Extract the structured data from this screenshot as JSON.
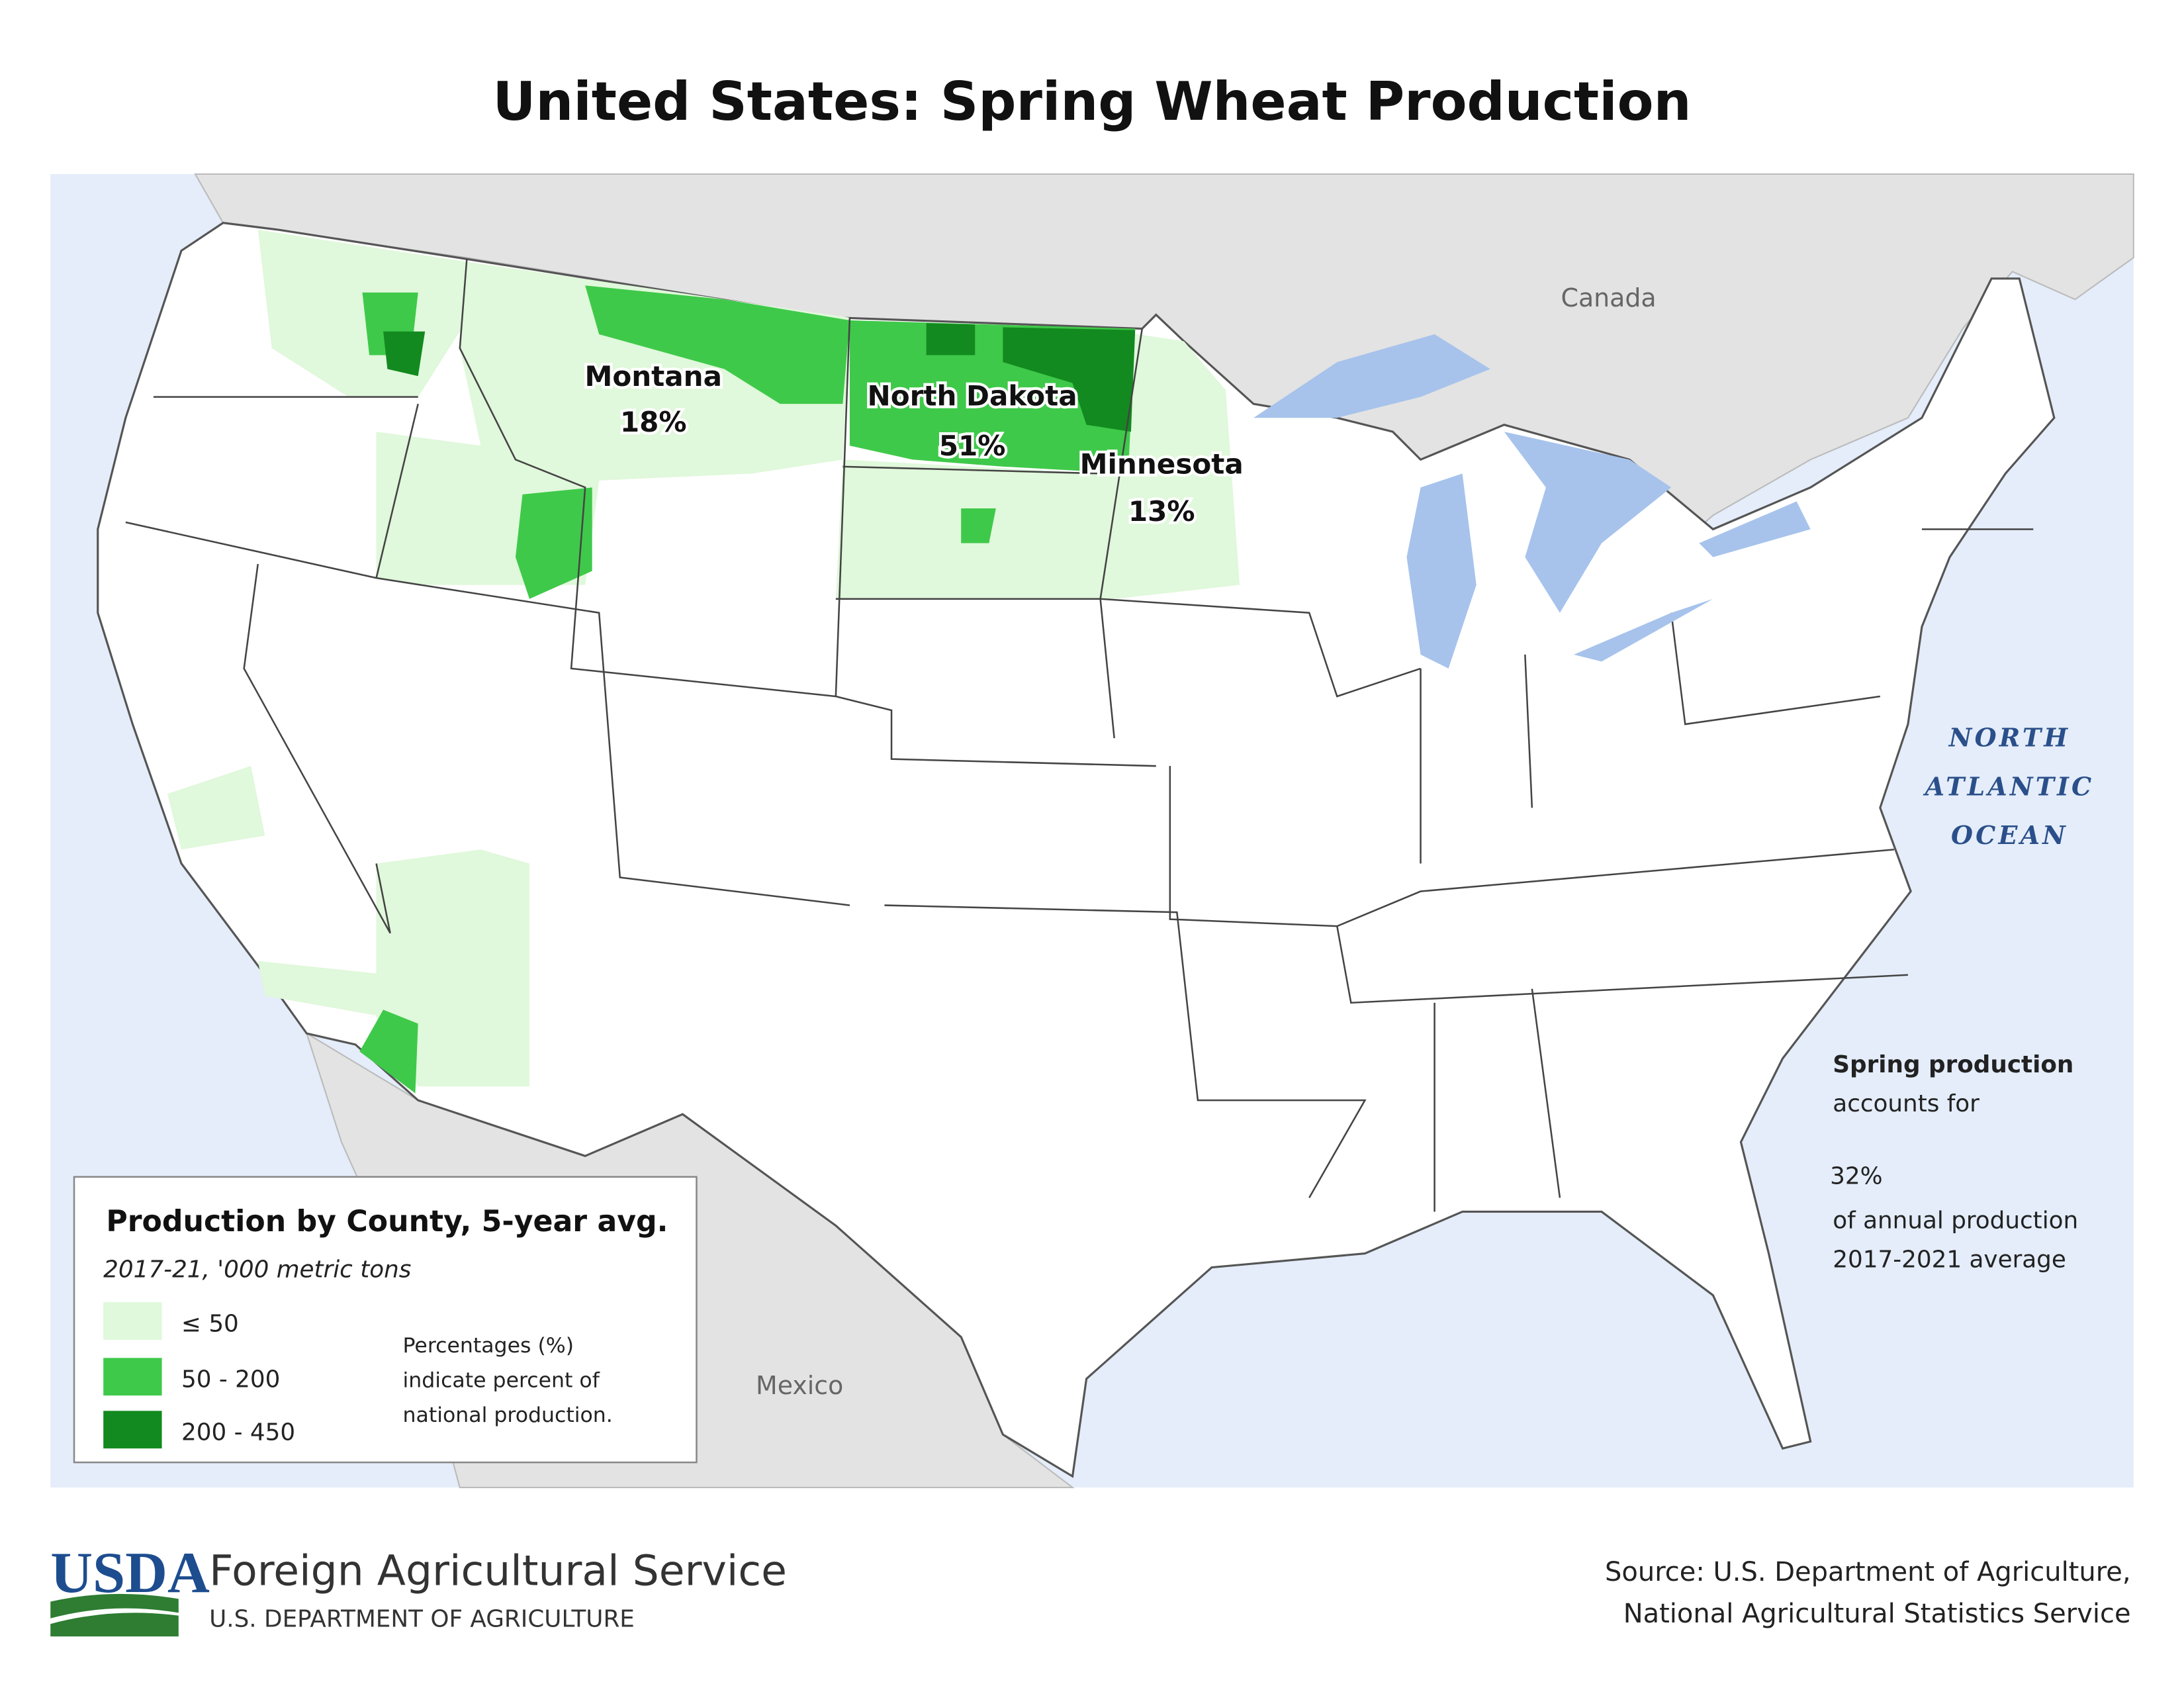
{
  "title": "United States: Spring Wheat Production",
  "map": {
    "labels": {
      "canada": "Canada",
      "mexico": "Mexico",
      "ocean": [
        "NORTH",
        "ATLANTIC",
        "OCEAN"
      ]
    },
    "states": [
      {
        "name": "Montana",
        "share": "18%"
      },
      {
        "name": "North Dakota",
        "share": "51%"
      },
      {
        "name": "Minnesota",
        "share": "13%"
      }
    ]
  },
  "legend": {
    "title": "Production by County, 5-year avg.",
    "subtitle": "2017-21, '000 metric tons",
    "items": [
      "≤ 50",
      "50 - 200",
      "200 - 450"
    ],
    "note": [
      "Percentages (%)",
      "indicate percent of",
      "national production."
    ]
  },
  "summary": {
    "lead": "Spring production",
    "line1": "accounts for",
    "share": "32%",
    "line2": "of annual production",
    "line3": "2017-2021 average"
  },
  "footer": {
    "logo": "USDA",
    "agency": "Foreign Agricultural Service",
    "department": "U.S. DEPARTMENT OF AGRICULTURE",
    "source": [
      "Source: U.S. Department of Agriculture,",
      "National Agricultural Statistics Service"
    ]
  }
}
